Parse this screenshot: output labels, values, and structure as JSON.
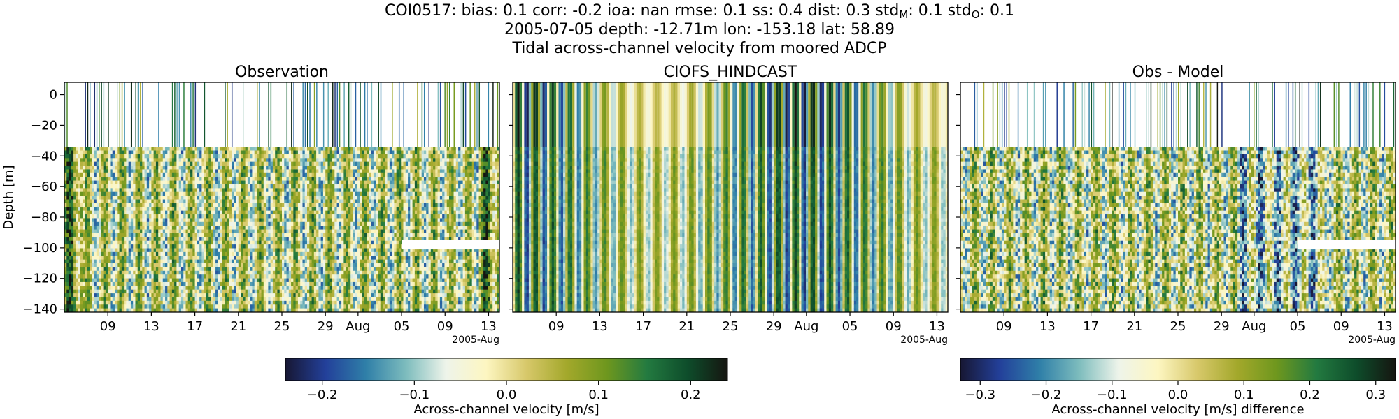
{
  "header": {
    "station": "COI0517: bias: 0.1  corr: -0.2  ioa: nan  rmse: 0.1  ss: 0.4  dist: 0.3  std",
    "std_m_sub": "M",
    "std_m_val": ": 0.1  std",
    "std_o_sub": "O",
    "std_o_val": ": 0.1",
    "line2": "2005-07-05 depth: -12.71m lon: -153.18 lat: 58.89",
    "line3": "Tidal across-channel velocity from moored ADCP"
  },
  "colors": {
    "colormap": [
      "#171733",
      "#23409a",
      "#2f7fa8",
      "#7dbcbd",
      "#eef4ea",
      "#fdf6c1",
      "#d7c86a",
      "#a3a82b",
      "#6e971e",
      "#237a40",
      "#0e4d2b",
      "#151510"
    ],
    "frame": "#000000",
    "no_data": "#ffffff"
  },
  "chart_data": [
    {
      "type": "heatmap",
      "title": "Observation",
      "ylabel": "Depth [m]",
      "ylim": [
        -142,
        8
      ],
      "yticks": [
        0,
        -20,
        -40,
        -60,
        -80,
        -100,
        -120,
        -140
      ],
      "ytick_labels": [
        "0",
        "−20",
        "−40",
        "−60",
        "−80",
        "−100",
        "−120",
        "−140"
      ],
      "xticks": [
        "09",
        "13",
        "17",
        "21",
        "25",
        "29",
        "Aug",
        "05",
        "09",
        "13"
      ],
      "x_offset_label": "2005-Aug",
      "x_range": [
        "2005-07-05",
        "2005-08-14"
      ],
      "clim": [
        -0.24,
        0.24
      ],
      "surface_layer_bottom_m": -34,
      "gap": {
        "depth_range_m": [
          -101,
          -95
        ],
        "start": "2005-08-05"
      }
    },
    {
      "type": "heatmap",
      "title": "CIOFS_HINDCAST",
      "ylim": [
        -142,
        8
      ],
      "xticks": [
        "09",
        "13",
        "17",
        "21",
        "25",
        "29",
        "Aug",
        "05",
        "09",
        "13"
      ],
      "x_offset_label": "2005-Aug",
      "x_range": [
        "2005-07-05",
        "2005-08-14"
      ],
      "clim": [
        -0.24,
        0.24
      ],
      "surface_layer_bottom_m": -34
    },
    {
      "type": "heatmap",
      "title": "Obs - Model",
      "ylim": [
        -142,
        8
      ],
      "xticks": [
        "09",
        "13",
        "17",
        "21",
        "25",
        "29",
        "Aug",
        "05",
        "09",
        "13"
      ],
      "x_offset_label": "2005-Aug",
      "x_range": [
        "2005-07-05",
        "2005-08-14"
      ],
      "clim": [
        -0.33,
        0.33
      ],
      "surface_layer_bottom_m": -34,
      "gap": {
        "depth_range_m": [
          -101,
          -95
        ],
        "start": "2005-08-05"
      }
    }
  ],
  "colorbars": [
    {
      "label": "Across-channel velocity [m/s]",
      "range": [
        -0.24,
        0.24
      ],
      "ticks": [
        -0.2,
        -0.1,
        0.0,
        0.1,
        0.2
      ],
      "tick_labels": [
        "−0.2",
        "−0.1",
        "0.0",
        "0.1",
        "0.2"
      ]
    },
    {
      "label": "Across-channel velocity [m/s] difference",
      "range": [
        -0.33,
        0.33
      ],
      "ticks": [
        -0.3,
        -0.2,
        -0.1,
        0.0,
        0.1,
        0.2,
        0.3
      ],
      "tick_labels": [
        "−0.3",
        "−0.2",
        "−0.1",
        "0.0",
        "0.1",
        "0.2",
        "0.3"
      ]
    }
  ]
}
